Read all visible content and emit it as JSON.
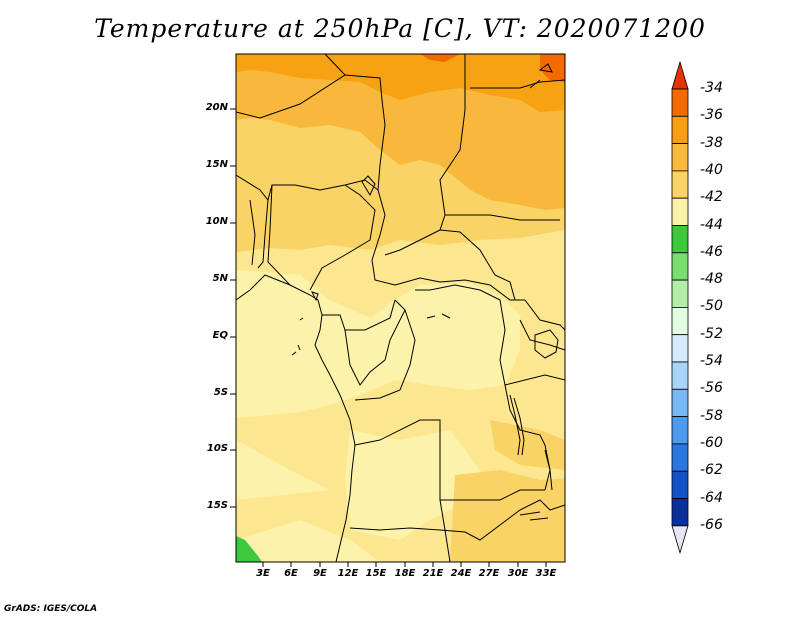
{
  "title": "Temperature at 250hPa [C], VT: 2020071200",
  "credit": "GrADS: IGES/COLA",
  "lat_labels": [
    "20N",
    "15N",
    "10N",
    "5N",
    "EQ",
    "5S",
    "10S",
    "15S"
  ],
  "lon_labels": [
    "3E",
    "6E",
    "9E",
    "12E",
    "15E",
    "18E",
    "21E",
    "24E",
    "27E",
    "30E",
    "33E"
  ],
  "colorbar": {
    "labels": [
      "-34",
      "-36",
      "-38",
      "-40",
      "-42",
      "-44",
      "-46",
      "-48",
      "-50",
      "-52",
      "-54",
      "-56",
      "-58",
      "-60",
      "-62",
      "-64",
      "-66"
    ],
    "colors": [
      "#e63300",
      "#f26a00",
      "#f79e13",
      "#f8b83c",
      "#fad366",
      "#fdf2aa",
      "#3dc93c",
      "#78df6e",
      "#b2eea8",
      "#e2fbe1",
      "#d6ecfc",
      "#a9d4f9",
      "#78b9f5",
      "#4d9bee",
      "#2a76e0",
      "#1251c4",
      "#0a2f9c",
      "#07107a",
      "#e6e6f5"
    ]
  },
  "field_colors": {
    "c36": "#f7a213",
    "c38": "#f8b83c",
    "c40": "#fad366",
    "c42": "#fce790",
    "c44": "#fdf2aa",
    "c46": "#3dc93c"
  }
}
